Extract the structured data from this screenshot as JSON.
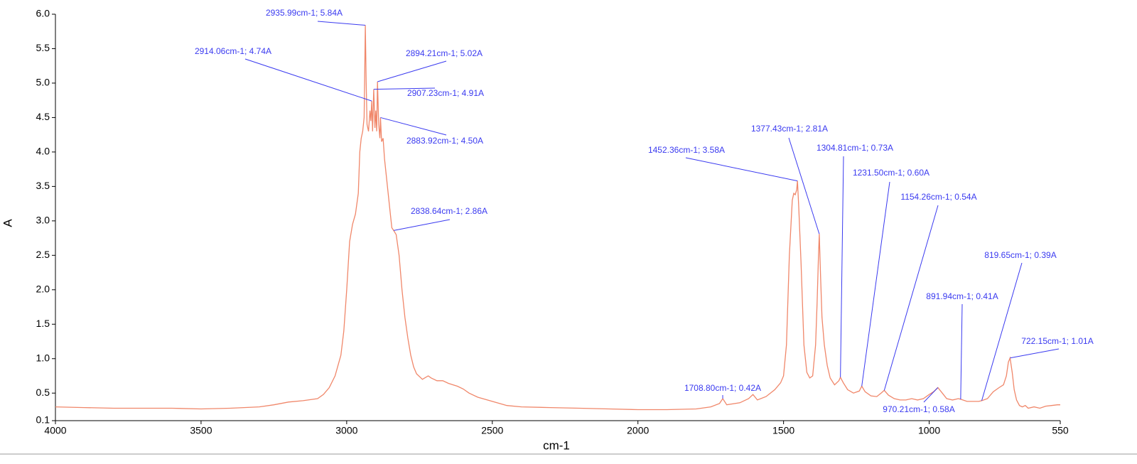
{
  "chart_data": {
    "type": "line",
    "x_label": "cm-1",
    "y_label": "A",
    "color": "#f0876a",
    "annotation_color": "#3a3af0",
    "xlim": [
      4000,
      550
    ],
    "ylim": [
      0.1,
      6.0
    ],
    "xticks": [
      4000,
      3500,
      3000,
      2500,
      2000,
      1500,
      1000,
      550
    ],
    "yticks": [
      {
        "value": 6,
        "label": "6.0"
      },
      5.5,
      {
        "value": 5,
        "label": "5.0"
      },
      4.5,
      {
        "value": 4,
        "label": "4.0"
      },
      3.5,
      {
        "value": 3,
        "label": "3.0"
      },
      2.5,
      {
        "value": 2,
        "label": "2.0"
      },
      1.5,
      {
        "value": 1,
        "label": "1.0"
      },
      0.5,
      0.1
    ],
    "x": [
      4000,
      3900,
      3800,
      3700,
      3600,
      3500,
      3400,
      3300,
      3250,
      3200,
      3150,
      3100,
      3080,
      3060,
      3040,
      3020,
      3010,
      3000,
      2990,
      2980,
      2970,
      2960,
      2955,
      2950,
      2945,
      2940,
      2938,
      2935.99,
      2933,
      2930,
      2925,
      2920,
      2917,
      2914.06,
      2911,
      2907.23,
      2903,
      2900,
      2897,
      2894.21,
      2890,
      2886,
      2883.92,
      2880,
      2875,
      2870,
      2860,
      2850,
      2845,
      2838.64,
      2830,
      2820,
      2810,
      2800,
      2790,
      2780,
      2770,
      2760,
      2740,
      2720,
      2710,
      2690,
      2670,
      2650,
      2620,
      2600,
      2580,
      2550,
      2500,
      2450,
      2400,
      2300,
      2200,
      2100,
      2000,
      1900,
      1800,
      1750,
      1720,
      1708.8,
      1695,
      1650,
      1620,
      1605,
      1590,
      1560,
      1530,
      1510,
      1500,
      1490,
      1480,
      1470,
      1465,
      1460,
      1455,
      1452.36,
      1448,
      1440,
      1430,
      1420,
      1410,
      1400,
      1390,
      1385,
      1380,
      1377.43,
      1373,
      1368,
      1360,
      1350,
      1340,
      1325,
      1310,
      1304.81,
      1295,
      1280,
      1260,
      1240,
      1231.5,
      1220,
      1200,
      1180,
      1165,
      1154.26,
      1140,
      1120,
      1100,
      1080,
      1060,
      1040,
      1020,
      1000,
      985,
      970.21,
      955,
      940,
      920,
      900,
      891.94,
      870,
      850,
      830,
      819.65,
      800,
      780,
      760,
      745,
      735,
      728,
      722.15,
      715,
      708,
      700,
      690,
      680,
      670,
      660,
      640,
      620,
      600,
      580,
      560,
      550
    ],
    "values": [
      0.3,
      0.29,
      0.28,
      0.28,
      0.28,
      0.27,
      0.28,
      0.3,
      0.33,
      0.37,
      0.39,
      0.42,
      0.48,
      0.58,
      0.75,
      1.05,
      1.4,
      2.0,
      2.7,
      2.95,
      3.1,
      3.4,
      4.0,
      4.2,
      4.3,
      4.5,
      5.2,
      5.84,
      5.0,
      4.4,
      4.3,
      4.6,
      4.45,
      4.74,
      4.3,
      4.91,
      4.35,
      4.6,
      4.3,
      5.02,
      4.4,
      4.2,
      4.5,
      4.15,
      4.2,
      3.9,
      3.5,
      3.1,
      2.9,
      2.86,
      2.8,
      2.5,
      2.0,
      1.6,
      1.3,
      1.05,
      0.88,
      0.78,
      0.7,
      0.75,
      0.72,
      0.68,
      0.68,
      0.64,
      0.6,
      0.56,
      0.5,
      0.44,
      0.38,
      0.32,
      0.3,
      0.29,
      0.28,
      0.27,
      0.26,
      0.26,
      0.27,
      0.3,
      0.35,
      0.42,
      0.33,
      0.36,
      0.42,
      0.48,
      0.4,
      0.45,
      0.55,
      0.65,
      0.75,
      1.2,
      2.5,
      3.3,
      3.4,
      3.38,
      3.45,
      3.58,
      3.2,
      2.4,
      1.2,
      0.8,
      0.72,
      0.75,
      1.2,
      1.8,
      2.5,
      2.81,
      2.2,
      1.6,
      1.2,
      0.9,
      0.72,
      0.62,
      0.68,
      0.73,
      0.65,
      0.55,
      0.5,
      0.53,
      0.6,
      0.52,
      0.46,
      0.45,
      0.5,
      0.54,
      0.47,
      0.42,
      0.4,
      0.4,
      0.42,
      0.4,
      0.42,
      0.48,
      0.52,
      0.58,
      0.5,
      0.42,
      0.4,
      0.42,
      0.41,
      0.38,
      0.38,
      0.38,
      0.39,
      0.42,
      0.52,
      0.58,
      0.62,
      0.75,
      0.95,
      1.01,
      0.8,
      0.55,
      0.4,
      0.32,
      0.3,
      0.32,
      0.28,
      0.3,
      0.28,
      0.31,
      0.32,
      0.33,
      0.33
    ],
    "annotations": [
      {
        "x": 2935.99,
        "y": 5.84,
        "label": "2935.99cm-1; 5.84A"
      },
      {
        "x": 2914.06,
        "y": 4.74,
        "label": "2914.06cm-1; 4.74A"
      },
      {
        "x": 2894.21,
        "y": 5.02,
        "label": "2894.21cm-1; 5.02A"
      },
      {
        "x": 2907.23,
        "y": 4.91,
        "label": "2907.23cm-1; 4.91A"
      },
      {
        "x": 2883.92,
        "y": 4.5,
        "label": "2883.92cm-1; 4.50A"
      },
      {
        "x": 2838.64,
        "y": 2.86,
        "label": "2838.64cm-1; 2.86A"
      },
      {
        "x": 1452.36,
        "y": 3.58,
        "label": "1452.36cm-1; 3.58A"
      },
      {
        "x": 1377.43,
        "y": 2.81,
        "label": "1377.43cm-1; 2.81A"
      },
      {
        "x": 1304.81,
        "y": 0.73,
        "label": "1304.81cm-1; 0.73A"
      },
      {
        "x": 1231.5,
        "y": 0.6,
        "label": "1231.50cm-1; 0.60A"
      },
      {
        "x": 1154.26,
        "y": 0.54,
        "label": "1154.26cm-1; 0.54A"
      },
      {
        "x": 891.94,
        "y": 0.41,
        "label": "891.94cm-1; 0.41A"
      },
      {
        "x": 819.65,
        "y": 0.39,
        "label": "819.65cm-1; 0.39A"
      },
      {
        "x": 722.15,
        "y": 1.01,
        "label": "722.15cm-1; 1.01A"
      },
      {
        "x": 1708.8,
        "y": 0.42,
        "label": "1708.80cm-1; 0.42A"
      },
      {
        "x": 970.21,
        "y": 0.58,
        "label": "970.21cm-1; 0.58A"
      }
    ]
  }
}
